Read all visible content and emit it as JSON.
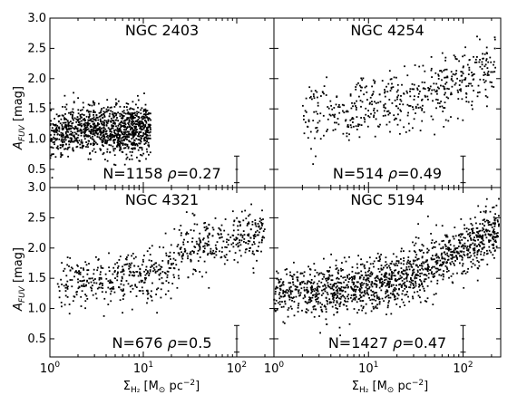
{
  "chart_data": {
    "type": "scatter",
    "x_scale": "log",
    "y_scale": "linear",
    "xlim": [
      1,
      250
    ],
    "ylim": [
      0.2,
      3.0
    ],
    "x_ticks": [
      {
        "value": 1,
        "base": "10",
        "exp": "0"
      },
      {
        "value": 10,
        "base": "10",
        "exp": "1"
      },
      {
        "value": 100,
        "base": "10",
        "exp": "2"
      }
    ],
    "y_ticks": [
      "0.5",
      "1.0",
      "1.5",
      "2.0",
      "2.5",
      "3.0"
    ],
    "ylabel": "A_FUV [mag]",
    "ylabel_parts": {
      "main": "A",
      "sub": "FUV",
      "unit": " [mag]"
    },
    "xlabel": "Σ_H2 [M⊙ pc^-2]",
    "xlabel_parts": {
      "sigma": "Σ",
      "sub": "H₂",
      "unit_open": " [M",
      "sun": "⊙",
      "unit_mid": " pc",
      "sup": "−2",
      "unit_close": "]"
    },
    "panels": [
      {
        "name": "NGC 2403",
        "stat_n": "N=1158",
        "rho_symbol": "ρ",
        "stat_rho": "=0.27",
        "n_points": 1158,
        "x_range": [
          1,
          12
        ],
        "trend": [
          [
            1.0,
            1.05
          ],
          [
            2.0,
            1.15
          ],
          [
            4.0,
            1.15
          ],
          [
            8.0,
            1.15
          ],
          [
            12.0,
            1.2
          ]
        ],
        "scatter": 0.2,
        "error_bar": {
          "x": 100,
          "y": 0.5,
          "dy": 0.22
        }
      },
      {
        "name": "NGC 4254",
        "stat_n": "N=514",
        "rho_symbol": "ρ",
        "stat_rho": "=0.49",
        "n_points": 514,
        "x_range": [
          2,
          220
        ],
        "trend": [
          [
            2.0,
            1.4
          ],
          [
            8.0,
            1.5
          ],
          [
            20.0,
            1.6
          ],
          [
            60.0,
            1.85
          ],
          [
            220.0,
            2.15
          ]
        ],
        "scatter": 0.25,
        "error_bar": {
          "x": 100,
          "y": 0.5,
          "dy": 0.22
        }
      },
      {
        "name": "NGC 4321",
        "stat_n": "N=676",
        "rho_symbol": "ρ",
        "stat_rho": "=0.5",
        "n_points": 676,
        "x_range": [
          1.2,
          200
        ],
        "trend": [
          [
            1.2,
            1.45
          ],
          [
            5.0,
            1.45
          ],
          [
            15.0,
            1.6
          ],
          [
            40.0,
            2.05
          ],
          [
            200.0,
            2.2
          ]
        ],
        "scatter": 0.22,
        "error_bar": {
          "x": 100,
          "y": 0.5,
          "dy": 0.22
        }
      },
      {
        "name": "NGC 5194",
        "stat_n": "N=1427",
        "rho_symbol": "ρ",
        "stat_rho": "=0.47",
        "n_points": 1427,
        "x_range": [
          1,
          240
        ],
        "trend": [
          [
            1.0,
            1.25
          ],
          [
            5.0,
            1.3
          ],
          [
            20.0,
            1.45
          ],
          [
            60.0,
            1.8
          ],
          [
            240.0,
            2.35
          ]
        ],
        "scatter": 0.22,
        "error_bar": {
          "x": 100,
          "y": 0.5,
          "dy": 0.22
        }
      }
    ]
  }
}
